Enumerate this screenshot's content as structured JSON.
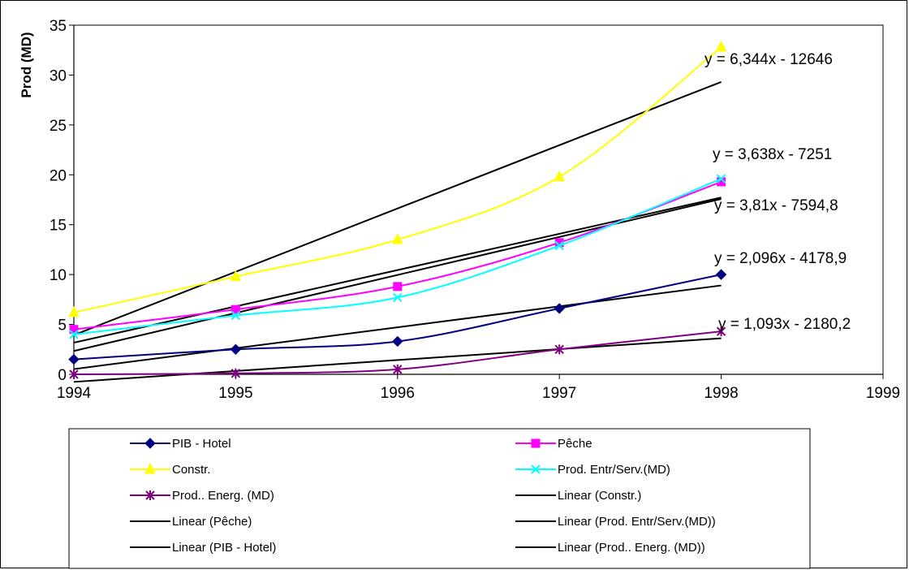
{
  "chart_data": {
    "type": "line",
    "title": "",
    "xlabel": "",
    "ylabel": "Prod (MD)",
    "xlim": [
      1994,
      1999
    ],
    "ylim": [
      0,
      35
    ],
    "x_ticks": [
      "1994",
      "1995",
      "1996",
      "1997",
      "1998",
      "1999"
    ],
    "y_ticks": [
      "0",
      "5",
      "10",
      "15",
      "20",
      "25",
      "30",
      "35"
    ],
    "grid": false,
    "legend_position": "bottom",
    "series": [
      {
        "name": "PIB - Hotel",
        "color": "#000080",
        "marker": "diamond",
        "x": [
          1994,
          1995,
          1996,
          1997,
          1998
        ],
        "values": [
          1.5,
          2.5,
          3.3,
          6.6,
          10.0
        ]
      },
      {
        "name": "Pêche",
        "color": "#ff00ff",
        "marker": "square",
        "x": [
          1994,
          1995,
          1996,
          1997,
          1998
        ],
        "values": [
          4.5,
          6.5,
          8.8,
          13.2,
          19.3
        ]
      },
      {
        "name": "Constr.",
        "color": "#ffff00",
        "marker": "triangle",
        "x": [
          1994,
          1995,
          1996,
          1997,
          1998
        ],
        "values": [
          6.2,
          9.8,
          13.5,
          19.8,
          32.8
        ]
      },
      {
        "name": "Prod. Entr/Serv.(MD)",
        "color": "#00ffff",
        "marker": "x",
        "x": [
          1994,
          1995,
          1996,
          1997,
          1998
        ],
        "values": [
          4.0,
          5.9,
          7.7,
          12.9,
          19.6
        ]
      },
      {
        "name": "Prod.. Energ. (MD)",
        "color": "#800080",
        "marker": "star",
        "x": [
          1994,
          1995,
          1996,
          1997,
          1998
        ],
        "values": [
          0.0,
          0.1,
          0.5,
          2.5,
          4.3
        ]
      }
    ],
    "trendlines": [
      {
        "name": "Linear (Constr.)",
        "equation": "y = 6,344x - 12646",
        "slope": 6.344,
        "intercept": -12646,
        "x_range": [
          1994,
          1998
        ],
        "color": "#000000"
      },
      {
        "name": "Linear (Pêche)",
        "equation": "y = 3,638x - 7251",
        "slope": 3.638,
        "intercept": -7251,
        "x_range": [
          1994,
          1998
        ],
        "color": "#000000"
      },
      {
        "name": "Linear (Prod. Entr/Serv.(MD))",
        "equation": "y = 3,81x - 7594,8",
        "slope": 3.81,
        "intercept": -7594.8,
        "x_range": [
          1994,
          1998
        ],
        "color": "#000000"
      },
      {
        "name": "Linear (PIB - Hotel)",
        "equation": "y = 2,096x - 4178,9",
        "slope": 2.096,
        "intercept": -4178.9,
        "x_range": [
          1994,
          1998
        ],
        "color": "#000000"
      },
      {
        "name": "Linear (Prod.. Energ. (MD))",
        "equation": "y = 1,093x - 2180,2",
        "slope": 1.093,
        "intercept": -2180.2,
        "x_range": [
          1994,
          1998
        ],
        "color": "#000000"
      }
    ],
    "legend": [
      {
        "label": "PIB - Hotel",
        "kind": "series",
        "ref": 0
      },
      {
        "label": "Pêche",
        "kind": "series",
        "ref": 1
      },
      {
        "label": "Constr.",
        "kind": "series",
        "ref": 2
      },
      {
        "label": "Prod. Entr/Serv.(MD)",
        "kind": "series",
        "ref": 3
      },
      {
        "label": "Prod.. Energ. (MD)",
        "kind": "series",
        "ref": 4
      },
      {
        "label": "Linear (Constr.)",
        "kind": "trend",
        "ref": 0
      },
      {
        "label": "Linear (Pêche)",
        "kind": "trend",
        "ref": 1
      },
      {
        "label": "Linear (Prod. Entr/Serv.(MD))",
        "kind": "trend",
        "ref": 2
      },
      {
        "label": "Linear (PIB - Hotel)",
        "kind": "trend",
        "ref": 3
      },
      {
        "label": "Linear (Prod.. Energ. (MD))",
        "kind": "trend",
        "ref": 4
      }
    ]
  }
}
